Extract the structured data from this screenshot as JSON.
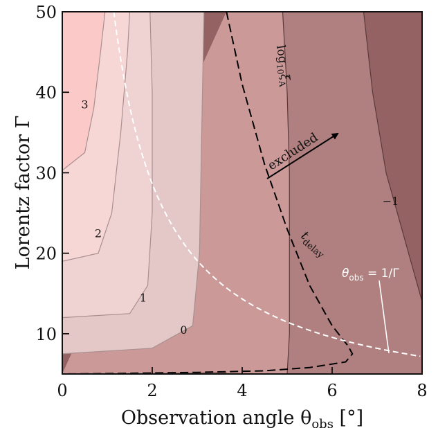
{
  "chart_data": {
    "type": "contour",
    "xlabel": "Observation angle θ",
    "xlabel_sub": "obs",
    "xlabel_unit": " [°]",
    "ylabel": "Lorentz factor Γ",
    "xlim": [
      0,
      8
    ],
    "ylim": [
      5,
      50
    ],
    "xticks": [
      0,
      2,
      4,
      6,
      8
    ],
    "yticks": [
      10,
      20,
      30,
      40,
      50
    ],
    "grid": false,
    "colorscale": [
      "#fcc9c9",
      "#f7d6d6",
      "#efd3d3",
      "#e4c8c8",
      "#d8bfbf",
      "#cc9999",
      "#b07f7f",
      "#946262"
    ],
    "contour_levels": [
      {
        "label": "3",
        "level": 3,
        "x": 0.5,
        "y": 38
      },
      {
        "label": "2",
        "level": 2,
        "x": 0.8,
        "y": 22
      },
      {
        "label": "1",
        "level": 1,
        "x": 1.8,
        "y": 14
      },
      {
        "label": "0",
        "level": 0,
        "x": 2.7,
        "y": 10
      },
      {
        "label": "−1",
        "level": -1,
        "x": 7.3,
        "y": 26
      }
    ],
    "contour_lines": [
      {
        "name": "c3",
        "points": [
          [
            0,
            30.3
          ],
          [
            0.5,
            32.5
          ],
          [
            0.7,
            38
          ],
          [
            0.85,
            45
          ],
          [
            0.95,
            50
          ]
        ]
      },
      {
        "name": "c2",
        "points": [
          [
            0,
            19
          ],
          [
            0.8,
            20
          ],
          [
            1.1,
            25
          ],
          [
            1.3,
            35
          ],
          [
            1.45,
            45
          ],
          [
            1.5,
            50
          ]
        ]
      },
      {
        "name": "c1",
        "points": [
          [
            0,
            12
          ],
          [
            1.5,
            12.5
          ],
          [
            1.9,
            16
          ],
          [
            2.0,
            25
          ],
          [
            2.0,
            40
          ],
          [
            1.95,
            50
          ]
        ]
      },
      {
        "name": "c0",
        "points": [
          [
            0,
            7.5
          ],
          [
            2.0,
            8.2
          ],
          [
            2.9,
            11
          ],
          [
            3.05,
            20
          ],
          [
            3.1,
            35
          ],
          [
            3.15,
            50
          ]
        ]
      },
      {
        "name": "cm1",
        "points": [
          [
            4.9,
            50
          ],
          [
            5.0,
            40
          ],
          [
            5.05,
            30
          ],
          [
            5.05,
            20
          ],
          [
            5.05,
            10
          ],
          [
            5.0,
            5
          ]
        ]
      },
      {
        "name": "cm2",
        "points": [
          [
            6.7,
            50
          ],
          [
            6.9,
            40
          ],
          [
            7.2,
            30
          ],
          [
            7.8,
            18
          ],
          [
            8.0,
            14
          ]
        ]
      }
    ],
    "boundary_curve": {
      "name": "t_delay",
      "label_main": "t",
      "label_sub": "delay",
      "points": [
        [
          3.65,
          50
        ],
        [
          4.0,
          41
        ],
        [
          4.5,
          31
        ],
        [
          5.0,
          23
        ],
        [
          5.5,
          16
        ],
        [
          6.0,
          11
        ],
        [
          6.35,
          8.5
        ],
        [
          6.45,
          7.5
        ],
        [
          6.3,
          6.5
        ],
        [
          5.5,
          5.8
        ],
        [
          4.5,
          5.4
        ],
        [
          3.0,
          5.2
        ],
        [
          1.0,
          5.05
        ],
        [
          0,
          5.0
        ]
      ]
    },
    "inverse_curve": {
      "name": "theta_obs_equals_one_over_gamma",
      "label_main": "θ",
      "label_sub": "obs",
      "label_rest": " = 1/Γ",
      "gamma_min": 7.2,
      "gamma_max": 50
    },
    "annotations": {
      "excluded": "excluded",
      "log_label_main": "log",
      "log_label_sub": "10",
      "log_label_rest": "ξ",
      "log_label_subsub": "A"
    }
  }
}
